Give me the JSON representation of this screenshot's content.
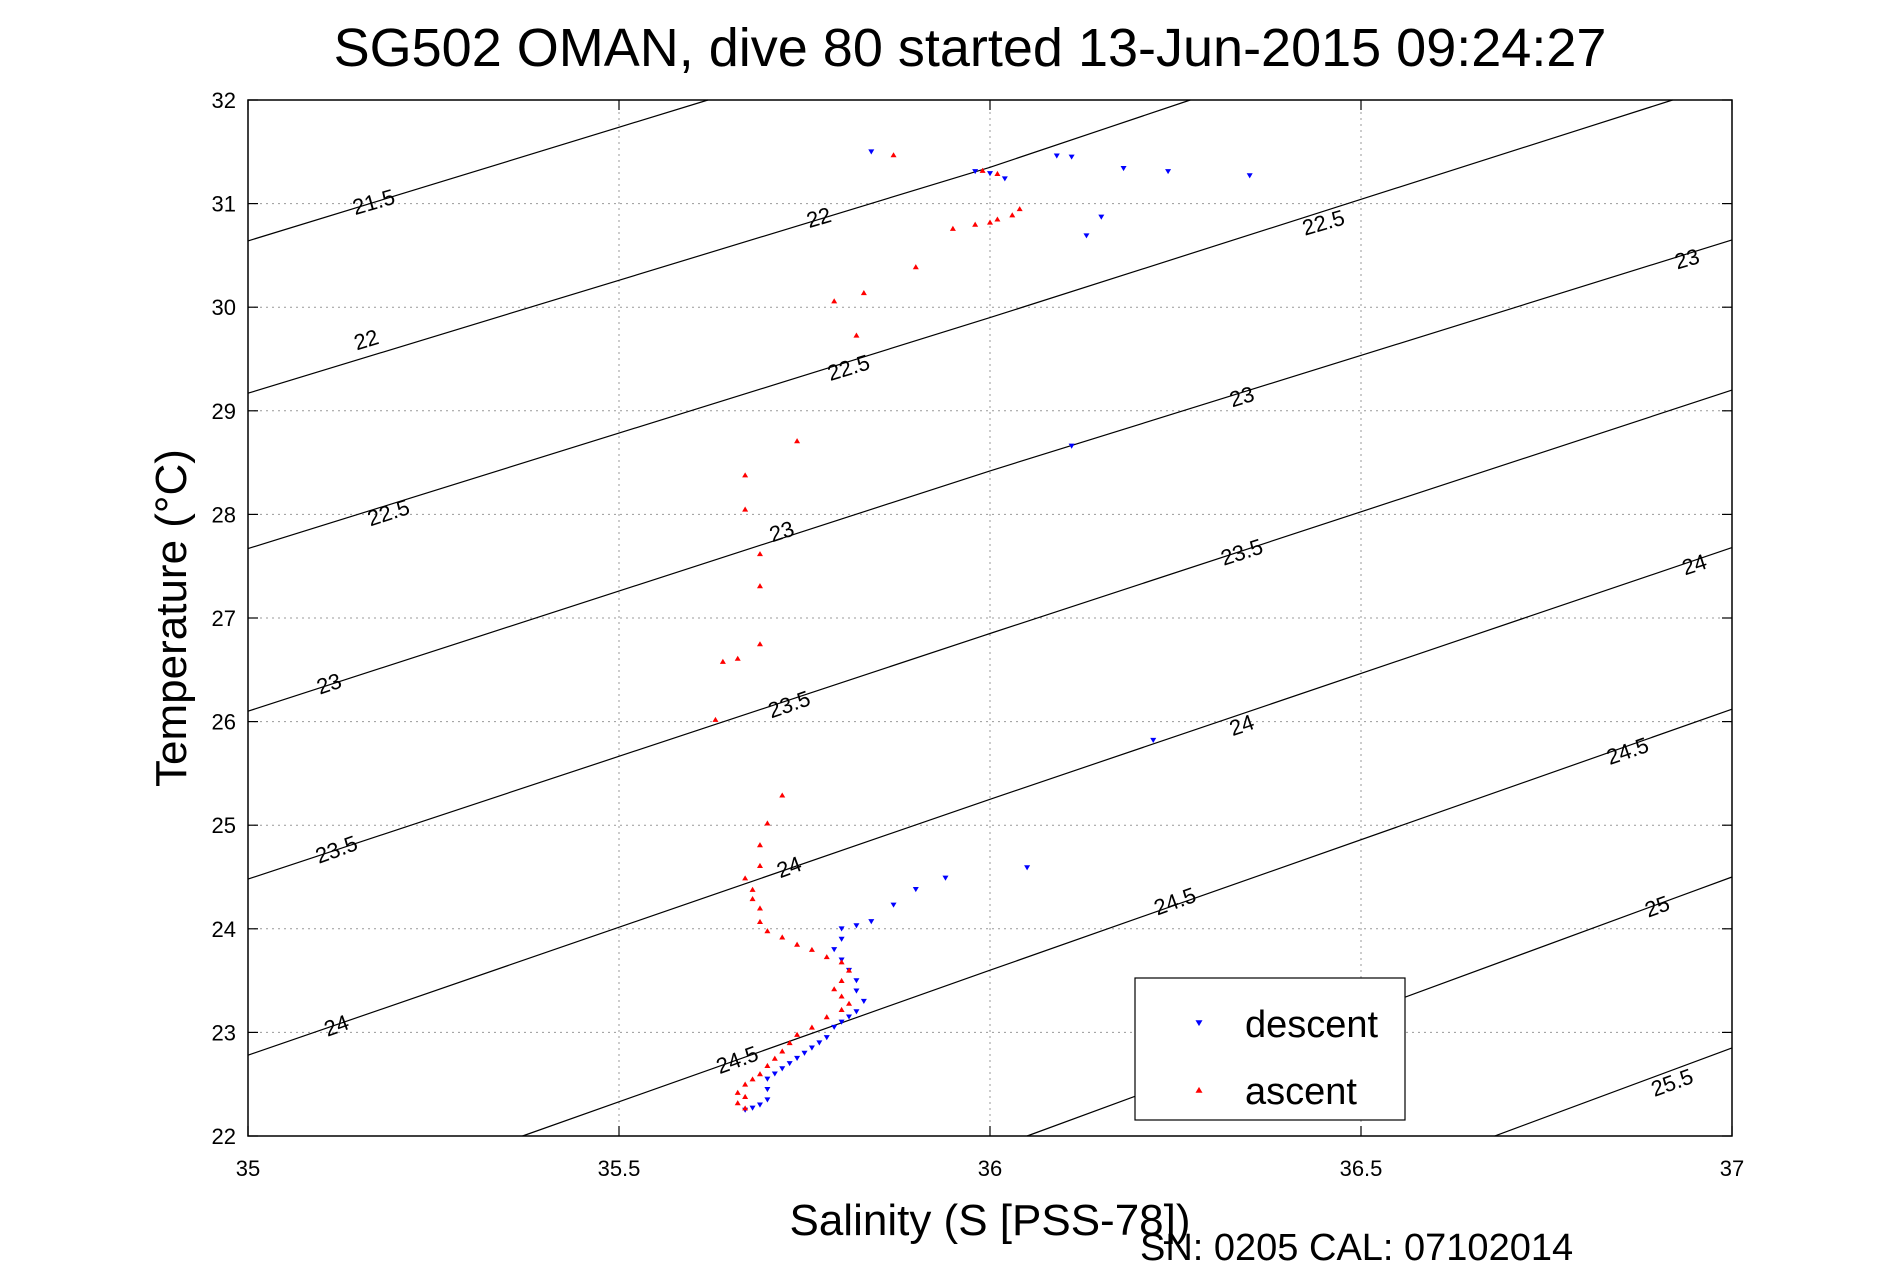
{
  "chart_data": {
    "type": "scatter",
    "title": "SG502 OMAN, dive 80 started 13-Jun-2015 09:24:27",
    "xlabel": "Salinity (S [PSS-78])",
    "ylabel": "Temperature (°C)",
    "xlim": [
      35,
      37
    ],
    "ylim": [
      22,
      32
    ],
    "xticks": [
      35,
      35.5,
      36,
      36.5,
      37
    ],
    "xtick_labels": [
      "35",
      "35.5",
      "36",
      "36.5",
      "37"
    ],
    "yticks": [
      22,
      23,
      24,
      25,
      26,
      27,
      28,
      29,
      30,
      31,
      32
    ],
    "ytick_labels": [
      "22",
      "23",
      "24",
      "25",
      "26",
      "27",
      "28",
      "29",
      "30",
      "31",
      "32"
    ],
    "grid": true,
    "legend_position": "bottom-right",
    "footer": "SN: 0205  CAL: 07102014",
    "density_contours": [
      {
        "level": "21.5",
        "points": [
          [
            35,
            30.64
          ],
          [
            35.62,
            32
          ]
        ]
      },
      {
        "level": "22",
        "points": [
          [
            35,
            29.17
          ],
          [
            36.0,
            31.35
          ],
          [
            36.27,
            32
          ]
        ]
      },
      {
        "level": "22.5",
        "points": [
          [
            35,
            27.67
          ],
          [
            36.0,
            29.9
          ],
          [
            36.92,
            32
          ]
        ]
      },
      {
        "level": "23",
        "points": [
          [
            35,
            26.1
          ],
          [
            36.0,
            28.42
          ],
          [
            37,
            30.65
          ]
        ]
      },
      {
        "level": "23.5",
        "points": [
          [
            35,
            24.48
          ],
          [
            36.0,
            26.85
          ],
          [
            37,
            29.2
          ]
        ]
      },
      {
        "level": "24",
        "points": [
          [
            35,
            22.78
          ],
          [
            36.0,
            25.25
          ],
          [
            37,
            27.68
          ]
        ]
      },
      {
        "level": "24.5",
        "points": [
          [
            35.37,
            22
          ],
          [
            36.0,
            23.6
          ],
          [
            37,
            26.12
          ]
        ]
      },
      {
        "level": "25",
        "points": [
          [
            36.05,
            22
          ],
          [
            37,
            24.5
          ]
        ]
      },
      {
        "level": "25.5",
        "points": [
          [
            36.68,
            22
          ],
          [
            37,
            22.85
          ]
        ]
      }
    ],
    "contour_labels": [
      {
        "text": "21.5",
        "x": 35.17,
        "y": 31.0,
        "angle": -16
      },
      {
        "text": "22",
        "x": 35.77,
        "y": 30.85,
        "angle": -16
      },
      {
        "text": "22.5",
        "x": 36.45,
        "y": 30.8,
        "angle": -16
      },
      {
        "text": "23",
        "x": 36.94,
        "y": 30.45,
        "angle": -16
      },
      {
        "text": "22",
        "x": 35.16,
        "y": 29.67,
        "angle": -17
      },
      {
        "text": "22.5",
        "x": 35.81,
        "y": 29.4,
        "angle": -17
      },
      {
        "text": "23",
        "x": 36.34,
        "y": 29.12,
        "angle": -17
      },
      {
        "text": "22.5",
        "x": 35.19,
        "y": 28.0,
        "angle": -18
      },
      {
        "text": "23",
        "x": 35.72,
        "y": 27.82,
        "angle": -18
      },
      {
        "text": "23.5",
        "x": 36.34,
        "y": 27.62,
        "angle": -18
      },
      {
        "text": "24",
        "x": 36.95,
        "y": 27.5,
        "angle": -18
      },
      {
        "text": "23",
        "x": 35.11,
        "y": 26.35,
        "angle": -19
      },
      {
        "text": "23.5",
        "x": 35.73,
        "y": 26.15,
        "angle": -19
      },
      {
        "text": "24",
        "x": 36.34,
        "y": 25.95,
        "angle": -19
      },
      {
        "text": "24.5",
        "x": 36.86,
        "y": 25.7,
        "angle": -19
      },
      {
        "text": "23.5",
        "x": 35.12,
        "y": 24.75,
        "angle": -20
      },
      {
        "text": "24",
        "x": 35.73,
        "y": 24.58,
        "angle": -20
      },
      {
        "text": "24.5",
        "x": 36.25,
        "y": 24.25,
        "angle": -20
      },
      {
        "text": "25",
        "x": 36.9,
        "y": 24.2,
        "angle": -20
      },
      {
        "text": "24",
        "x": 35.12,
        "y": 23.05,
        "angle": -20
      },
      {
        "text": "24.5",
        "x": 35.66,
        "y": 22.72,
        "angle": -20
      },
      {
        "text": "25.5",
        "x": 36.92,
        "y": 22.5,
        "angle": -20
      }
    ],
    "series": [
      {
        "name": "descent",
        "color": "#0000ff",
        "marker": "triangle-down",
        "x": [
          35.84,
          35.98,
          36.0,
          36.02,
          36.09,
          36.11,
          36.18,
          36.24,
          36.35,
          36.13,
          36.15,
          36.11,
          36.22,
          36.05,
          35.94,
          35.9,
          35.87,
          35.84,
          35.82,
          35.8,
          35.8,
          35.79,
          35.8,
          35.81,
          35.82,
          35.82,
          35.83,
          35.82,
          35.81,
          35.8,
          35.79,
          35.78,
          35.77,
          35.76,
          35.75,
          35.74,
          35.73,
          35.72,
          35.71,
          35.7,
          35.7,
          35.7,
          35.69,
          35.68,
          35.67
        ],
        "y": [
          31.5,
          31.31,
          31.29,
          31.24,
          31.46,
          31.45,
          31.34,
          31.31,
          31.27,
          30.69,
          30.87,
          28.66,
          25.82,
          24.59,
          24.49,
          24.38,
          24.23,
          24.07,
          24.03,
          24.0,
          23.9,
          23.8,
          23.7,
          23.6,
          23.5,
          23.4,
          23.3,
          23.2,
          23.15,
          23.1,
          23.05,
          22.95,
          22.9,
          22.85,
          22.8,
          22.75,
          22.7,
          22.65,
          22.6,
          22.55,
          22.45,
          22.35,
          22.3,
          22.27,
          22.25
        ]
      },
      {
        "name": "ascent",
        "color": "#ff0000",
        "marker": "triangle-up",
        "x": [
          35.87,
          35.99,
          36.01,
          36.04,
          36.03,
          36.01,
          36.0,
          35.98,
          35.95,
          35.9,
          35.83,
          35.79,
          35.82,
          35.74,
          35.67,
          35.67,
          35.69,
          35.69,
          35.69,
          35.64,
          35.66,
          35.63,
          35.72,
          35.7,
          35.69,
          35.69,
          35.67,
          35.68,
          35.68,
          35.69,
          35.69,
          35.7,
          35.72,
          35.74,
          35.76,
          35.78,
          35.8,
          35.81,
          35.8,
          35.79,
          35.8,
          35.81,
          35.8,
          35.78,
          35.76,
          35.74,
          35.73,
          35.72,
          35.71,
          35.7,
          35.69,
          35.68,
          35.67,
          35.66,
          35.67,
          35.66,
          35.67
        ],
        "y": [
          31.47,
          31.32,
          31.29,
          30.95,
          30.89,
          30.85,
          30.82,
          30.8,
          30.76,
          30.39,
          30.14,
          30.06,
          29.73,
          28.71,
          28.38,
          28.05,
          27.62,
          27.31,
          26.75,
          26.58,
          26.61,
          26.02,
          25.29,
          25.02,
          24.81,
          24.61,
          24.49,
          24.38,
          24.29,
          24.2,
          24.07,
          23.98,
          23.92,
          23.85,
          23.8,
          23.73,
          23.68,
          23.6,
          23.5,
          23.42,
          23.35,
          23.28,
          23.22,
          23.15,
          23.05,
          22.98,
          22.9,
          22.82,
          22.75,
          22.68,
          22.6,
          22.55,
          22.5,
          22.42,
          22.38,
          22.32,
          22.27
        ]
      }
    ]
  }
}
